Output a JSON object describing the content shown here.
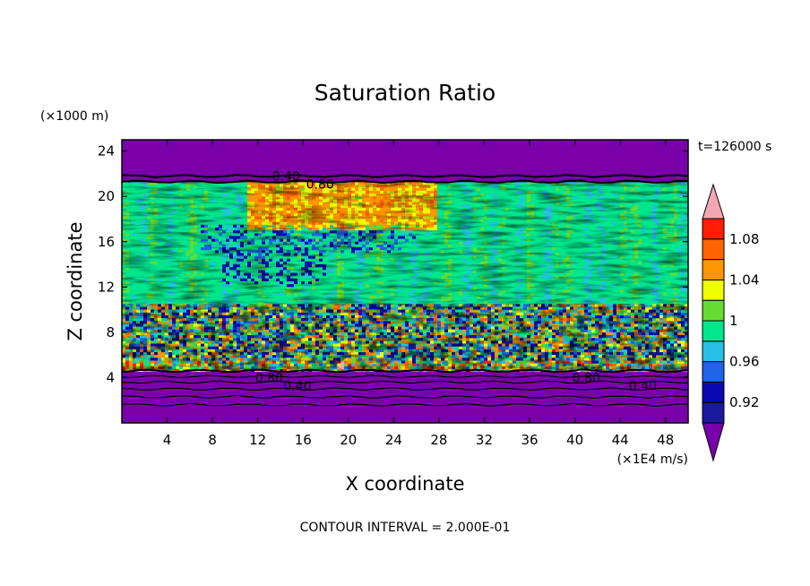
{
  "chart_data": {
    "type": "heatmap",
    "title": "Saturation Ratio",
    "xlabel": "X coordinate",
    "ylabel": "Z coordinate",
    "x_unit": "(×1E4 m/s)",
    "y_unit": "(×1000 m)",
    "time_label": "t=126000 s",
    "footer": "CONTOUR INTERVAL = 2.000E-01",
    "xlim": [
      0,
      50
    ],
    "ylim": [
      0,
      25
    ],
    "x_ticks": [
      "4",
      "8",
      "12",
      "16",
      "20",
      "24",
      "28",
      "32",
      "36",
      "40",
      "44",
      "48"
    ],
    "y_ticks": [
      "4",
      "8",
      "12",
      "16",
      "20",
      "24"
    ],
    "colorbar": {
      "levels": [
        0.9,
        0.92,
        0.94,
        0.96,
        0.98,
        1.0,
        1.02,
        1.04,
        1.06,
        1.08,
        1.1
      ],
      "colors": [
        "#1a1a9e",
        "#0a0ab4",
        "#1e64e6",
        "#28bee6",
        "#00e68c",
        "#64dc32",
        "#f0ff00",
        "#ff9600",
        "#ff6400",
        "#ff1e00"
      ],
      "under_color": "#7a00aa",
      "over_color": "#f4a6b2",
      "tick_labels": [
        "0.92",
        "0.96",
        "1",
        "1.04",
        "1.08"
      ]
    },
    "contour_labels": [
      {
        "text": "0.40",
        "x": 14.5,
        "y": 21.8
      },
      {
        "text": "0.80",
        "x": 17.5,
        "y": 21.1
      },
      {
        "text": "0.80",
        "x": 13.0,
        "y": 4.0
      },
      {
        "text": "0.40",
        "x": 15.5,
        "y": 3.3
      },
      {
        "text": "0.80",
        "x": 41.0,
        "y": 4.0
      },
      {
        "text": "0.40",
        "x": 46.0,
        "y": 3.3
      }
    ]
  }
}
